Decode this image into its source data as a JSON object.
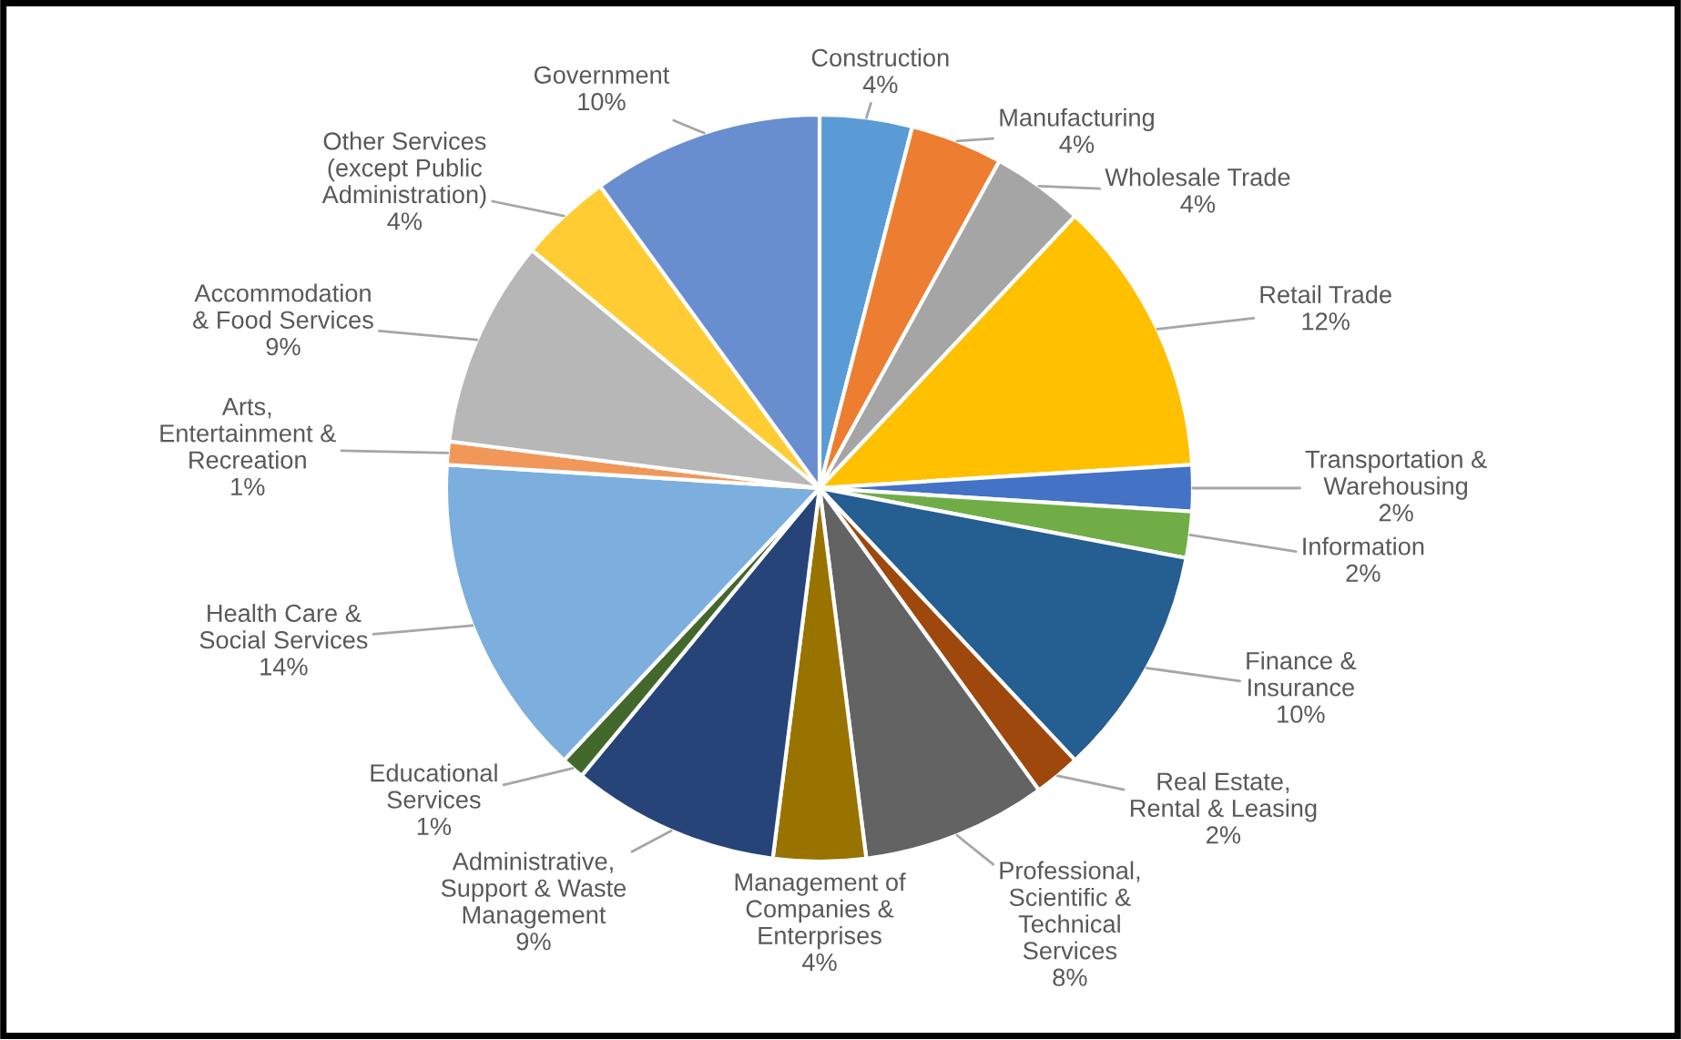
{
  "chart_data": {
    "type": "pie",
    "categories": [
      "Construction",
      "Manufacturing",
      "Wholesale Trade",
      "Retail Trade",
      "Transportation &\nWarehousing",
      "Information",
      "Finance &\nInsurance",
      "Real Estate,\nRental & Leasing",
      "Professional,\nScientific &\nTechnical\nServices",
      "Management of\nCompanies &\nEnterprises",
      "Administrative,\nSupport & Waste\nManagement",
      "Educational\nServices",
      "Health Care &\nSocial Services",
      "Arts,\nEntertainment &\nRecreation",
      "Accommodation\n& Food Services",
      "Other Services\n(except Public\nAdministration)",
      "Government"
    ],
    "values": [
      4,
      4,
      4,
      12,
      2,
      2,
      10,
      2,
      8,
      4,
      9,
      1,
      14,
      1,
      9,
      4,
      10
    ],
    "value_labels": [
      "4%",
      "4%",
      "4%",
      "12%",
      "2%",
      "2%",
      "10%",
      "2%",
      "8%",
      "4%",
      "9%",
      "1%",
      "14%",
      "1%",
      "9%",
      "4%",
      "10%"
    ],
    "colors": [
      "#5b9bd5",
      "#ed7d31",
      "#a5a5a5",
      "#ffc000",
      "#4472c4",
      "#70ad47",
      "#255e91",
      "#9e480e",
      "#636363",
      "#997300",
      "#264478",
      "#43682b",
      "#7cafdd",
      "#f1975a",
      "#b7b7b7",
      "#ffcd33",
      "#698ed0"
    ]
  }
}
